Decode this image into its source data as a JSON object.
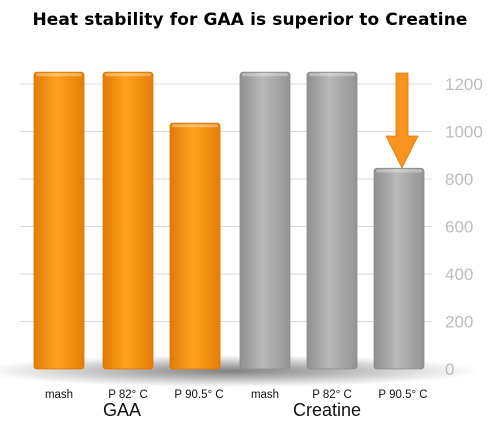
{
  "chart_data": {
    "type": "bar",
    "title": "Heat stability for GAA is superior to Creatine",
    "categories": [
      "mash",
      "P 82° C",
      "P 90.5° C",
      "mash",
      "P 82° C",
      "P 90.5° C"
    ],
    "groups": [
      {
        "label": "GAA",
        "indices": [
          0,
          1,
          2
        ],
        "color": "#f7931e"
      },
      {
        "label": "Creatine",
        "indices": [
          3,
          4,
          5
        ],
        "color": "#a9a9a9"
      }
    ],
    "values": [
      1250,
      1250,
      1035,
      1250,
      1250,
      845
    ],
    "yticks": [
      0,
      200,
      400,
      600,
      800,
      1000,
      1200
    ],
    "ylim": [
      0,
      1290
    ],
    "axis_position": "right",
    "grid": true,
    "annotation": {
      "type": "arrow-down",
      "target_index": 5,
      "color": "#f7931e"
    }
  }
}
